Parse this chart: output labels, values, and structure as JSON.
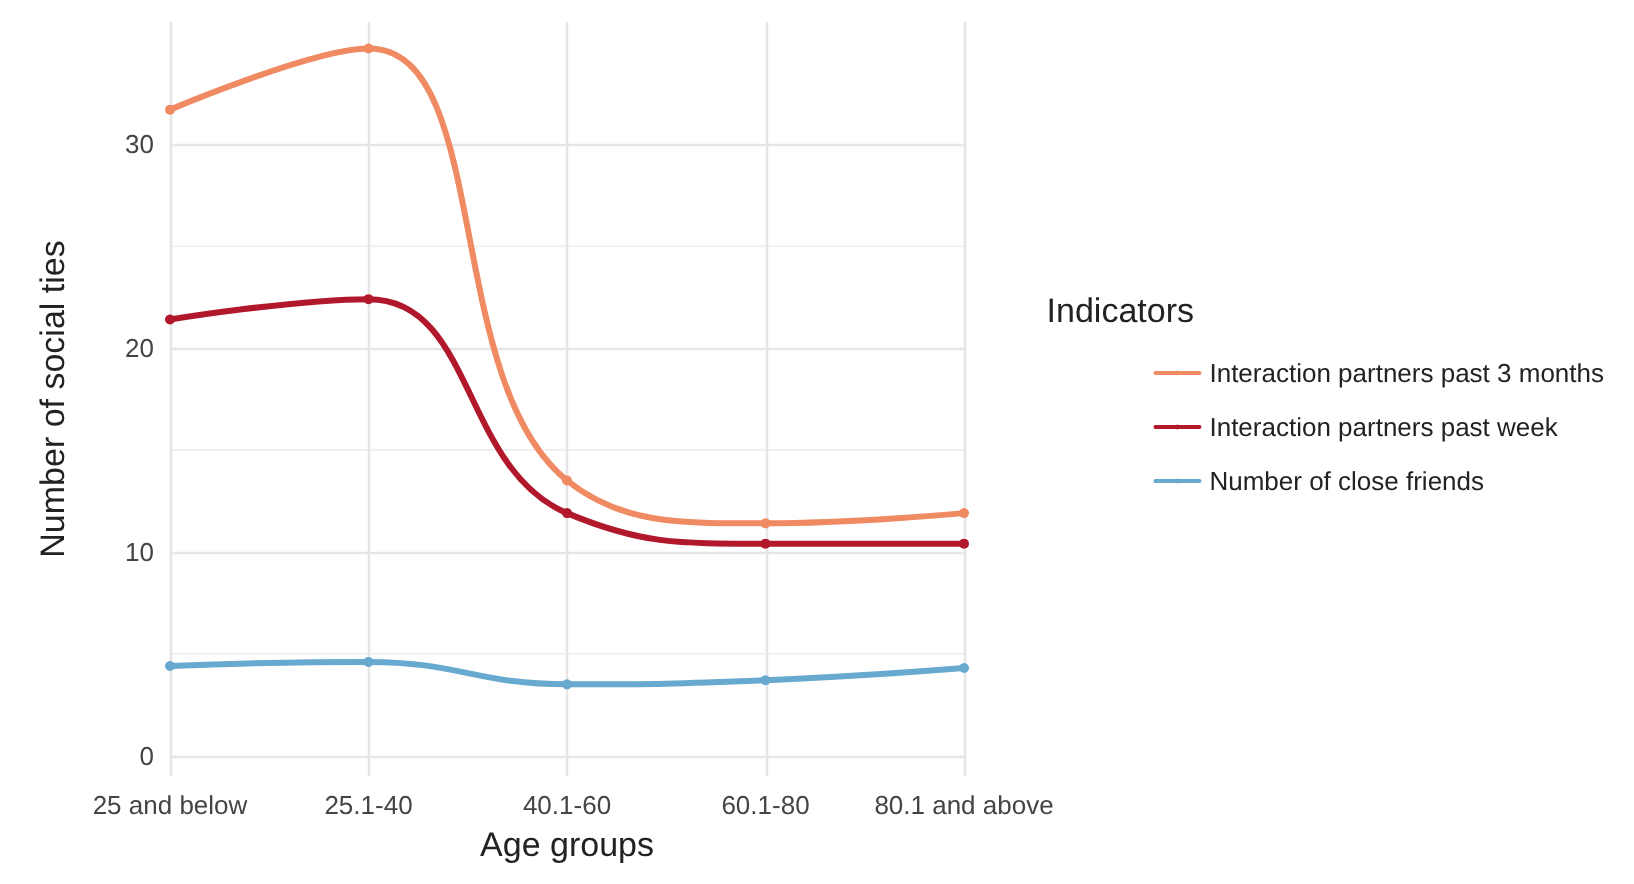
{
  "chart_data": {
    "type": "line",
    "xlabel": "Age groups",
    "ylabel": "Number of social ties",
    "legend_title": "Indicators",
    "categories": [
      "25 and below",
      "25.1-40",
      "40.1-60",
      "60.1-80",
      "80.1 and above"
    ],
    "series": [
      {
        "name": "Interaction partners past 3 months",
        "color": "#ef8a62",
        "values": [
          31.7,
          34.7,
          13.5,
          11.4,
          11.9
        ]
      },
      {
        "name": "Interaction partners past week",
        "color": "#b2182b",
        "values": [
          21.4,
          22.4,
          11.9,
          10.4,
          10.4
        ]
      },
      {
        "name": "Number of close friends",
        "color": "#67a9cf",
        "values": [
          4.4,
          4.6,
          3.5,
          3.7,
          4.3
        ]
      }
    ],
    "ylim": [
      -1,
      36
    ],
    "yticks": [
      0,
      10,
      20,
      30
    ],
    "grid": true,
    "legend": "right",
    "marker": "circle",
    "line_style": "solid"
  }
}
